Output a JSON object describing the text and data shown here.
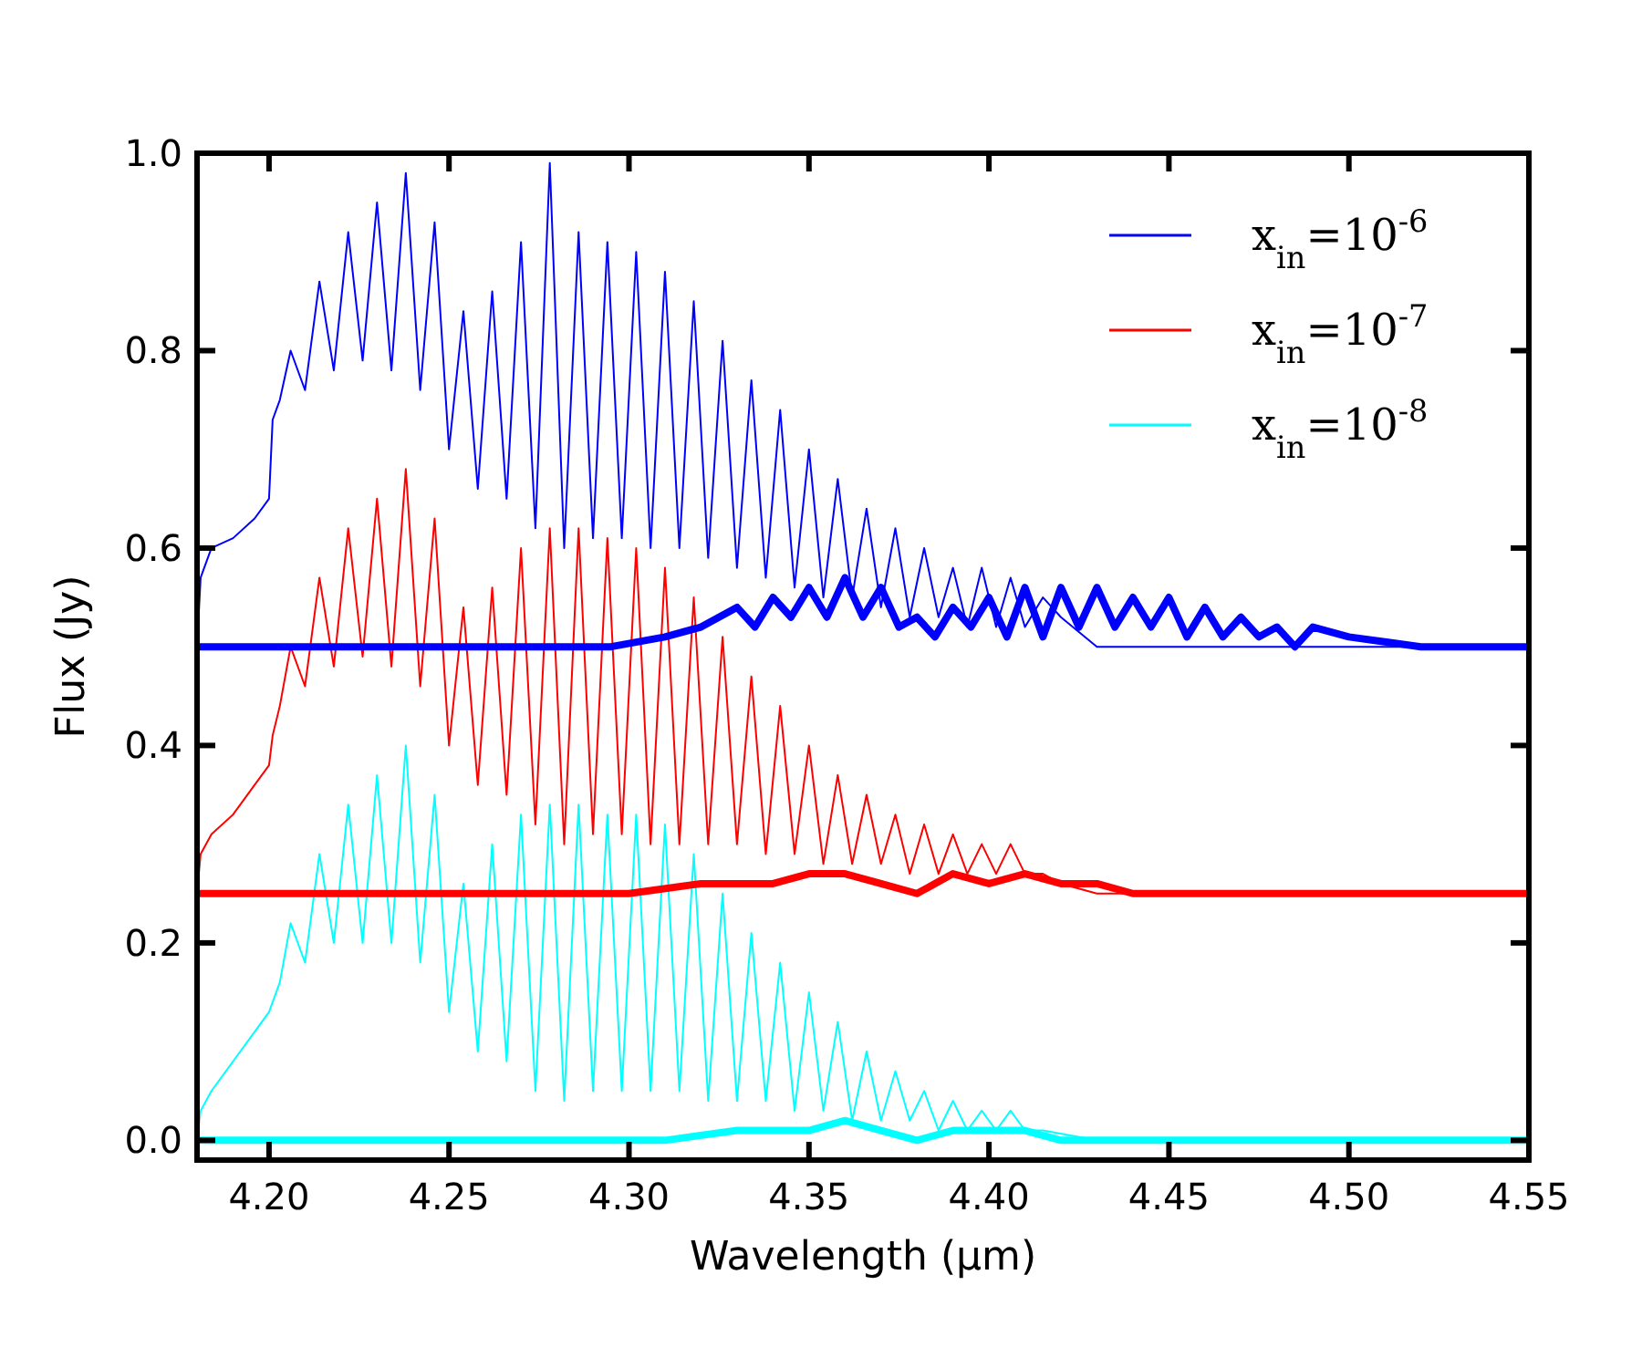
{
  "chart_data": {
    "type": "line",
    "xlabel": "Wavelength (μm)",
    "ylabel": "Flux (Jy)",
    "xlim": [
      4.18,
      4.55
    ],
    "ylim": [
      -0.02,
      1.0
    ],
    "xticks": [
      {
        "value": 4.2,
        "label": "4.20"
      },
      {
        "value": 4.25,
        "label": "4.25"
      },
      {
        "value": 4.3,
        "label": "4.30"
      },
      {
        "value": 4.35,
        "label": "4.35"
      },
      {
        "value": 4.4,
        "label": "4.40"
      },
      {
        "value": 4.45,
        "label": "4.45"
      },
      {
        "value": 4.5,
        "label": "4.50"
      },
      {
        "value": 4.55,
        "label": "4.55"
      }
    ],
    "yticks": [
      {
        "value": 0,
        "label": "0.0"
      },
      {
        "value": 0.2,
        "label": "0.2"
      },
      {
        "value": 0.4,
        "label": "0.4"
      },
      {
        "value": 0.6,
        "label": "0.6"
      },
      {
        "value": 0.8,
        "label": "0.8"
      },
      {
        "value": 1.0,
        "label": "1.0"
      }
    ],
    "legend": "top right",
    "grid": false,
    "line_style": "solid",
    "series": [
      {
        "name": "x$_{in}$=10$^{-6}$",
        "color": "#0000ff",
        "x": [
          4.18,
          4.181,
          4.184,
          4.19,
          4.196,
          4.2,
          4.201,
          4.203,
          4.206,
          4.21,
          4.214,
          4.218,
          4.222,
          4.226,
          4.23,
          4.234,
          4.238,
          4.242,
          4.246,
          4.25,
          4.254,
          4.258,
          4.262,
          4.266,
          4.27,
          4.274,
          4.278,
          4.282,
          4.286,
          4.29,
          4.294,
          4.298,
          4.302,
          4.306,
          4.31,
          4.314,
          4.318,
          4.322,
          4.326,
          4.33,
          4.334,
          4.338,
          4.342,
          4.346,
          4.35,
          4.354,
          4.358,
          4.362,
          4.366,
          4.37,
          4.374,
          4.378,
          4.382,
          4.386,
          4.39,
          4.394,
          4.398,
          4.402,
          4.406,
          4.41,
          4.415,
          4.42,
          4.43,
          4.55
        ],
        "values": [
          0.5,
          0.57,
          0.6,
          0.61,
          0.63,
          0.65,
          0.73,
          0.75,
          0.8,
          0.76,
          0.87,
          0.78,
          0.92,
          0.79,
          0.95,
          0.78,
          0.98,
          0.76,
          0.93,
          0.7,
          0.84,
          0.66,
          0.86,
          0.65,
          0.91,
          0.62,
          0.99,
          0.6,
          0.92,
          0.61,
          0.91,
          0.61,
          0.9,
          0.6,
          0.88,
          0.6,
          0.85,
          0.59,
          0.81,
          0.58,
          0.77,
          0.57,
          0.74,
          0.56,
          0.7,
          0.55,
          0.67,
          0.55,
          0.64,
          0.54,
          0.62,
          0.53,
          0.6,
          0.53,
          0.58,
          0.52,
          0.58,
          0.52,
          0.57,
          0.52,
          0.55,
          0.53,
          0.5,
          0.5
        ]
      },
      {
        "name": "x$_{in}$=10$^{-7}$",
        "color": "#ff0000",
        "x": [
          4.18,
          4.181,
          4.184,
          4.19,
          4.196,
          4.2,
          4.201,
          4.203,
          4.206,
          4.21,
          4.214,
          4.218,
          4.222,
          4.226,
          4.23,
          4.234,
          4.238,
          4.242,
          4.246,
          4.25,
          4.254,
          4.258,
          4.262,
          4.266,
          4.27,
          4.274,
          4.278,
          4.282,
          4.286,
          4.29,
          4.294,
          4.298,
          4.302,
          4.306,
          4.31,
          4.314,
          4.318,
          4.322,
          4.326,
          4.33,
          4.334,
          4.338,
          4.342,
          4.346,
          4.35,
          4.354,
          4.358,
          4.362,
          4.366,
          4.37,
          4.374,
          4.378,
          4.382,
          4.386,
          4.39,
          4.394,
          4.398,
          4.402,
          4.406,
          4.41,
          4.415,
          4.42,
          4.43,
          4.55
        ],
        "values": [
          0.25,
          0.29,
          0.31,
          0.33,
          0.36,
          0.38,
          0.41,
          0.44,
          0.5,
          0.46,
          0.57,
          0.48,
          0.62,
          0.49,
          0.65,
          0.48,
          0.68,
          0.46,
          0.63,
          0.4,
          0.54,
          0.36,
          0.56,
          0.35,
          0.6,
          0.32,
          0.62,
          0.3,
          0.62,
          0.31,
          0.61,
          0.31,
          0.6,
          0.3,
          0.58,
          0.3,
          0.55,
          0.3,
          0.51,
          0.3,
          0.47,
          0.29,
          0.44,
          0.29,
          0.4,
          0.28,
          0.37,
          0.28,
          0.35,
          0.28,
          0.33,
          0.27,
          0.32,
          0.27,
          0.31,
          0.27,
          0.3,
          0.27,
          0.3,
          0.27,
          0.27,
          0.26,
          0.25,
          0.25
        ]
      },
      {
        "name": "x$_{in}$=10$^{-8}$",
        "color": "#00ffff",
        "x": [
          4.18,
          4.181,
          4.184,
          4.19,
          4.196,
          4.2,
          4.203,
          4.206,
          4.21,
          4.214,
          4.218,
          4.222,
          4.226,
          4.23,
          4.234,
          4.238,
          4.242,
          4.246,
          4.25,
          4.254,
          4.258,
          4.262,
          4.266,
          4.27,
          4.274,
          4.278,
          4.282,
          4.286,
          4.29,
          4.294,
          4.298,
          4.302,
          4.306,
          4.31,
          4.314,
          4.318,
          4.322,
          4.326,
          4.33,
          4.334,
          4.338,
          4.342,
          4.346,
          4.35,
          4.354,
          4.358,
          4.362,
          4.366,
          4.37,
          4.374,
          4.378,
          4.382,
          4.386,
          4.39,
          4.394,
          4.398,
          4.402,
          4.406,
          4.41,
          4.415,
          4.43,
          4.55
        ],
        "values": [
          0.0,
          0.03,
          0.05,
          0.08,
          0.11,
          0.13,
          0.16,
          0.22,
          0.18,
          0.29,
          0.2,
          0.34,
          0.2,
          0.37,
          0.2,
          0.4,
          0.18,
          0.35,
          0.13,
          0.26,
          0.09,
          0.3,
          0.08,
          0.33,
          0.05,
          0.34,
          0.04,
          0.34,
          0.05,
          0.33,
          0.05,
          0.33,
          0.05,
          0.32,
          0.05,
          0.29,
          0.04,
          0.25,
          0.04,
          0.21,
          0.04,
          0.18,
          0.03,
          0.15,
          0.03,
          0.12,
          0.02,
          0.09,
          0.02,
          0.07,
          0.02,
          0.05,
          0.01,
          0.04,
          0.01,
          0.03,
          0.01,
          0.03,
          0.01,
          0.01,
          0.0,
          0.0
        ]
      },
      {
        "color": "#0000ff",
        "x": [
          4.18,
          4.295,
          4.31,
          4.32,
          4.33,
          4.335,
          4.34,
          4.345,
          4.35,
          4.355,
          4.36,
          4.365,
          4.37,
          4.375,
          4.38,
          4.385,
          4.39,
          4.395,
          4.4,
          4.405,
          4.41,
          4.415,
          4.42,
          4.425,
          4.43,
          4.435,
          4.44,
          4.445,
          4.45,
          4.455,
          4.46,
          4.465,
          4.47,
          4.475,
          4.48,
          4.485,
          4.49,
          4.5,
          4.52,
          4.55
        ],
        "values": [
          0.5,
          0.5,
          0.51,
          0.52,
          0.54,
          0.52,
          0.55,
          0.53,
          0.56,
          0.53,
          0.57,
          0.53,
          0.56,
          0.52,
          0.53,
          0.51,
          0.54,
          0.52,
          0.55,
          0.51,
          0.56,
          0.51,
          0.56,
          0.52,
          0.56,
          0.52,
          0.55,
          0.52,
          0.55,
          0.51,
          0.54,
          0.51,
          0.53,
          0.51,
          0.52,
          0.5,
          0.52,
          0.51,
          0.5,
          0.5
        ]
      },
      {
        "color": "#ff0000",
        "x": [
          4.18,
          4.3,
          4.32,
          4.34,
          4.35,
          4.36,
          4.37,
          4.38,
          4.39,
          4.4,
          4.41,
          4.42,
          4.43,
          4.44,
          4.46,
          4.55
        ],
        "values": [
          0.25,
          0.25,
          0.26,
          0.26,
          0.27,
          0.27,
          0.26,
          0.25,
          0.27,
          0.26,
          0.27,
          0.26,
          0.26,
          0.25,
          0.25,
          0.25
        ]
      },
      {
        "color": "#00ffff",
        "x": [
          4.18,
          4.31,
          4.33,
          4.35,
          4.36,
          4.37,
          4.38,
          4.39,
          4.4,
          4.41,
          4.42,
          4.44,
          4.55
        ],
        "values": [
          0.0,
          0.0,
          0.01,
          0.01,
          0.02,
          0.01,
          0.0,
          0.01,
          0.01,
          0.01,
          0.0,
          0.0,
          0.0
        ]
      }
    ]
  }
}
